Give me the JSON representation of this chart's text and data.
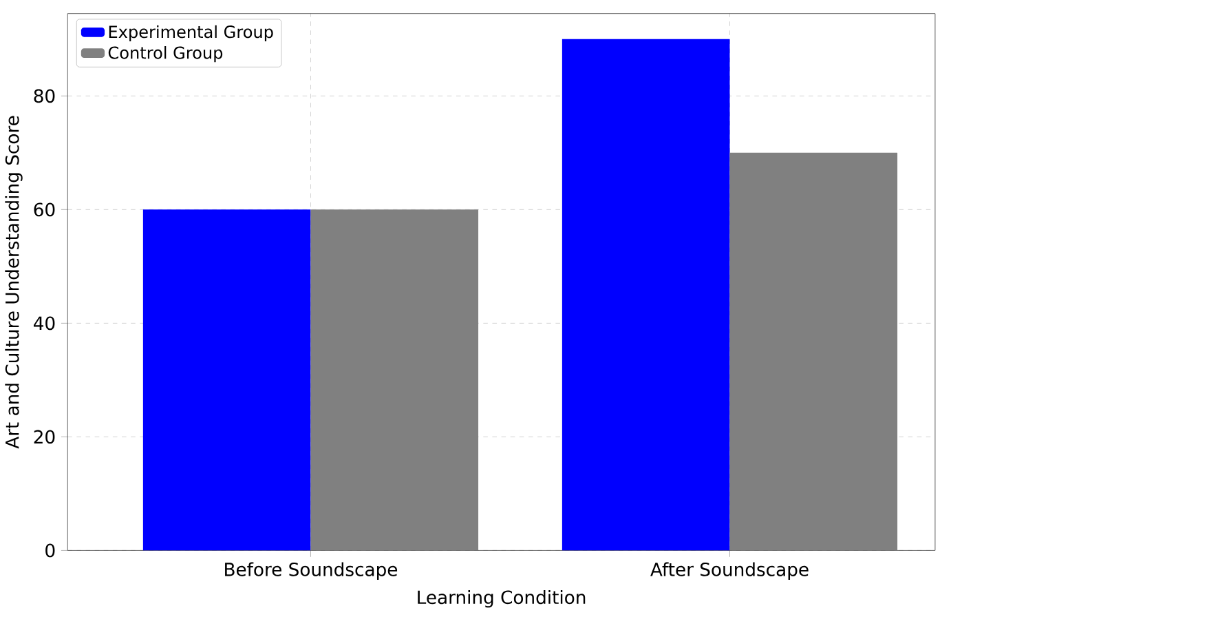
{
  "chart_data": {
    "type": "bar",
    "xlabel": "Learning Condition",
    "ylabel": "Art and Culture Understanding Score",
    "categories": [
      "Before Soundscape",
      "After Soundscape"
    ],
    "series": [
      {
        "name": "Experimental Group",
        "color": "#0000ff",
        "values": [
          60,
          90
        ]
      },
      {
        "name": "Control Group",
        "color": "#808080",
        "values": [
          60,
          70
        ]
      }
    ],
    "ylim": [
      0,
      94.5
    ],
    "yticks": [
      0,
      20,
      40,
      60,
      80
    ],
    "grid": true,
    "legend": "top left"
  }
}
